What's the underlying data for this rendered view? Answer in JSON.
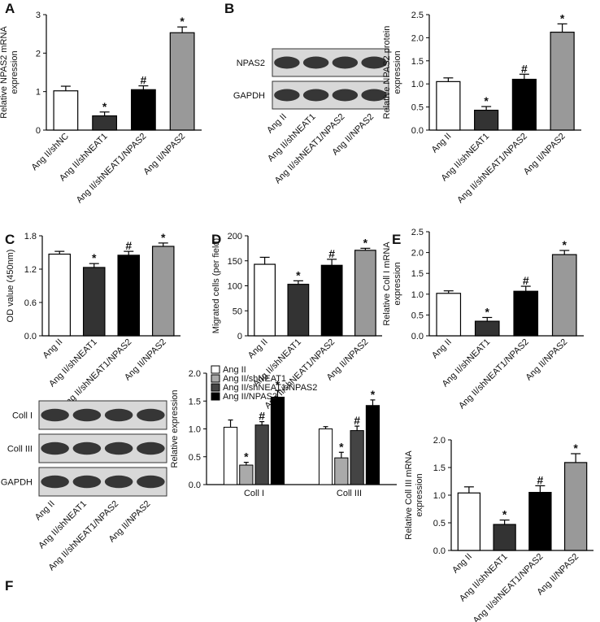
{
  "chart_data": [
    {
      "label": "A",
      "type": "bar",
      "ylabel": [
        "Relative NPAS2 mRNA",
        "expression"
      ],
      "categories": [
        "Ang II/shNC",
        "Ang II/shNEAT1",
        "Ang II/shNEAT1/NPAS2",
        "Ang II/NPAS2"
      ],
      "values": [
        1.02,
        0.37,
        1.05,
        2.53
      ],
      "errors": [
        0.12,
        0.1,
        0.1,
        0.15
      ],
      "annotations": [
        null,
        "*",
        "#",
        "*"
      ],
      "colors": [
        "#ffffff",
        "#333333",
        "#000000",
        "#999999"
      ],
      "ylim": [
        0,
        3
      ],
      "yticks": [
        0,
        1,
        2,
        3
      ]
    },
    {
      "label": "B",
      "type": "bar",
      "ylabel": [
        "Relative NPAS2 protein",
        "expression"
      ],
      "blot": {
        "rows": [
          "NPAS2",
          "GAPDH"
        ],
        "lanes": [
          "Ang II",
          "Ang II/shNEAT1",
          "Ang II/shNEAT1/NPAS2",
          "Ang II/NPAS2"
        ]
      },
      "categories": [
        "Ang II",
        "Ang II/shNEAT1",
        "Ang II/shNEAT1/NPAS2",
        "Ang II/NPAS2"
      ],
      "values": [
        1.05,
        0.43,
        1.1,
        2.12
      ],
      "errors": [
        0.08,
        0.08,
        0.11,
        0.18
      ],
      "annotations": [
        null,
        "*",
        "#",
        "*"
      ],
      "colors": [
        "#ffffff",
        "#333333",
        "#000000",
        "#999999"
      ],
      "ylim": [
        0,
        2.5
      ],
      "yticks": [
        {
          "value": 0,
          "label": "0.0"
        },
        0.5,
        {
          "value": 1,
          "label": "1.0"
        },
        1.5,
        {
          "value": 2,
          "label": "2.0"
        },
        2.5
      ]
    },
    {
      "label": "C",
      "type": "bar",
      "ylabel": [
        "OD value (450nm)"
      ],
      "categories": [
        "Ang II",
        "Ang II/shNEAT1",
        "Ang II/shNEAT1/NPAS2",
        "Ang II/NPAS2"
      ],
      "values": [
        1.47,
        1.23,
        1.45,
        1.61
      ],
      "errors": [
        0.05,
        0.07,
        0.07,
        0.06
      ],
      "annotations": [
        null,
        "*",
        "#",
        "*"
      ],
      "colors": [
        "#ffffff",
        "#333333",
        "#000000",
        "#999999"
      ],
      "ylim": [
        0,
        1.8
      ],
      "yticks": [
        {
          "value": 0,
          "label": "0.0"
        },
        0.6,
        1.2,
        1.8
      ]
    },
    {
      "label": "D",
      "type": "bar",
      "ylabel": [
        "Migrated cells (per field)"
      ],
      "categories": [
        "Ang II",
        "Ang II/shNEAT1",
        "Ang II/shNEAT1/NPAS2",
        "Ang II/NPAS2"
      ],
      "values": [
        143,
        103,
        141,
        171
      ],
      "errors": [
        14,
        7,
        12,
        4
      ],
      "annotations": [
        null,
        "*",
        "#",
        "*"
      ],
      "colors": [
        "#ffffff",
        "#333333",
        "#000000",
        "#999999"
      ],
      "ylim": [
        0,
        200
      ],
      "yticks": [
        0,
        50,
        100,
        150,
        200
      ]
    },
    {
      "label": "E",
      "type": "bar",
      "ylabel": [
        "Relative Coll I mRNA",
        "expression"
      ],
      "categories": [
        "Ang II",
        "Ang II/shNEAT1",
        "Ang II/shNEAT1/NPAS2",
        "Ang II/NPAS2"
      ],
      "values": [
        1.02,
        0.35,
        1.07,
        1.95
      ],
      "errors": [
        0.06,
        0.09,
        0.12,
        0.1
      ],
      "annotations": [
        null,
        "*",
        "#",
        "*"
      ],
      "colors": [
        "#ffffff",
        "#333333",
        "#000000",
        "#999999"
      ],
      "ylim": [
        0,
        2.5
      ],
      "yticks": [
        {
          "value": 0,
          "label": "0.0"
        },
        0.5,
        {
          "value": 1,
          "label": "1.0"
        },
        1.5,
        {
          "value": 2,
          "label": "2.0"
        },
        2.5
      ]
    },
    {
      "label": "F",
      "type": "bar",
      "ylabel": [
        "Relative expression"
      ],
      "blot": {
        "rows": [
          "Coll I",
          "Coll III",
          "GAPDH"
        ],
        "lanes": [
          "Ang II",
          "Ang II/shNEAT1",
          "Ang II/shNEAT1/NPAS2",
          "Ang II/NPAS2"
        ]
      },
      "categories": [
        "Coll I",
        "Coll III"
      ],
      "legend": "upper left",
      "series": [
        {
          "name": "Ang II",
          "color": "#ffffff",
          "values": [
            1.03,
            1.0
          ],
          "errors": [
            0.13,
            0.04
          ],
          "annotations": [
            null,
            null
          ]
        },
        {
          "name": "Ang II/shNEAT1",
          "color": "#aaaaaa",
          "values": [
            0.35,
            0.48
          ],
          "errors": [
            0.05,
            0.1
          ],
          "annotations": [
            "*",
            "*"
          ]
        },
        {
          "name": "Ang II/shNEAT1/NPAS2",
          "color": "#444444",
          "values": [
            1.07,
            0.97
          ],
          "errors": [
            0.06,
            0.08
          ],
          "annotations": [
            "#",
            "#"
          ]
        },
        {
          "name": "Ang II/NPAS2",
          "color": "#000000",
          "values": [
            1.57,
            1.42
          ],
          "errors": [
            0.12,
            0.1
          ],
          "annotations": [
            "*",
            "*"
          ]
        }
      ],
      "ylim": [
        0,
        2
      ],
      "yticks": [
        {
          "value": 0,
          "label": "0.0"
        },
        0.5,
        {
          "value": 1,
          "label": "1.0"
        },
        1.5,
        {
          "value": 2,
          "label": "2.0"
        }
      ]
    },
    {
      "type": "bar",
      "ylabel": [
        "Relative Coll III mRNA",
        "expression"
      ],
      "categories": [
        "Ang II",
        "Ang II/shNEAT1",
        "Ang II/shNEAT1/NPAS2",
        "Ang II/NPAS2"
      ],
      "values": [
        1.04,
        0.47,
        1.05,
        1.59
      ],
      "errors": [
        0.11,
        0.08,
        0.12,
        0.16
      ],
      "annotations": [
        null,
        "*",
        "#",
        "*"
      ],
      "colors": [
        "#ffffff",
        "#333333",
        "#000000",
        "#999999"
      ],
      "ylim": [
        0,
        2
      ],
      "yticks": [
        {
          "value": 0,
          "label": "0.0"
        },
        0.5,
        {
          "value": 1,
          "label": "1.0"
        },
        1.5,
        {
          "value": 2,
          "label": "2.0"
        }
      ]
    }
  ]
}
